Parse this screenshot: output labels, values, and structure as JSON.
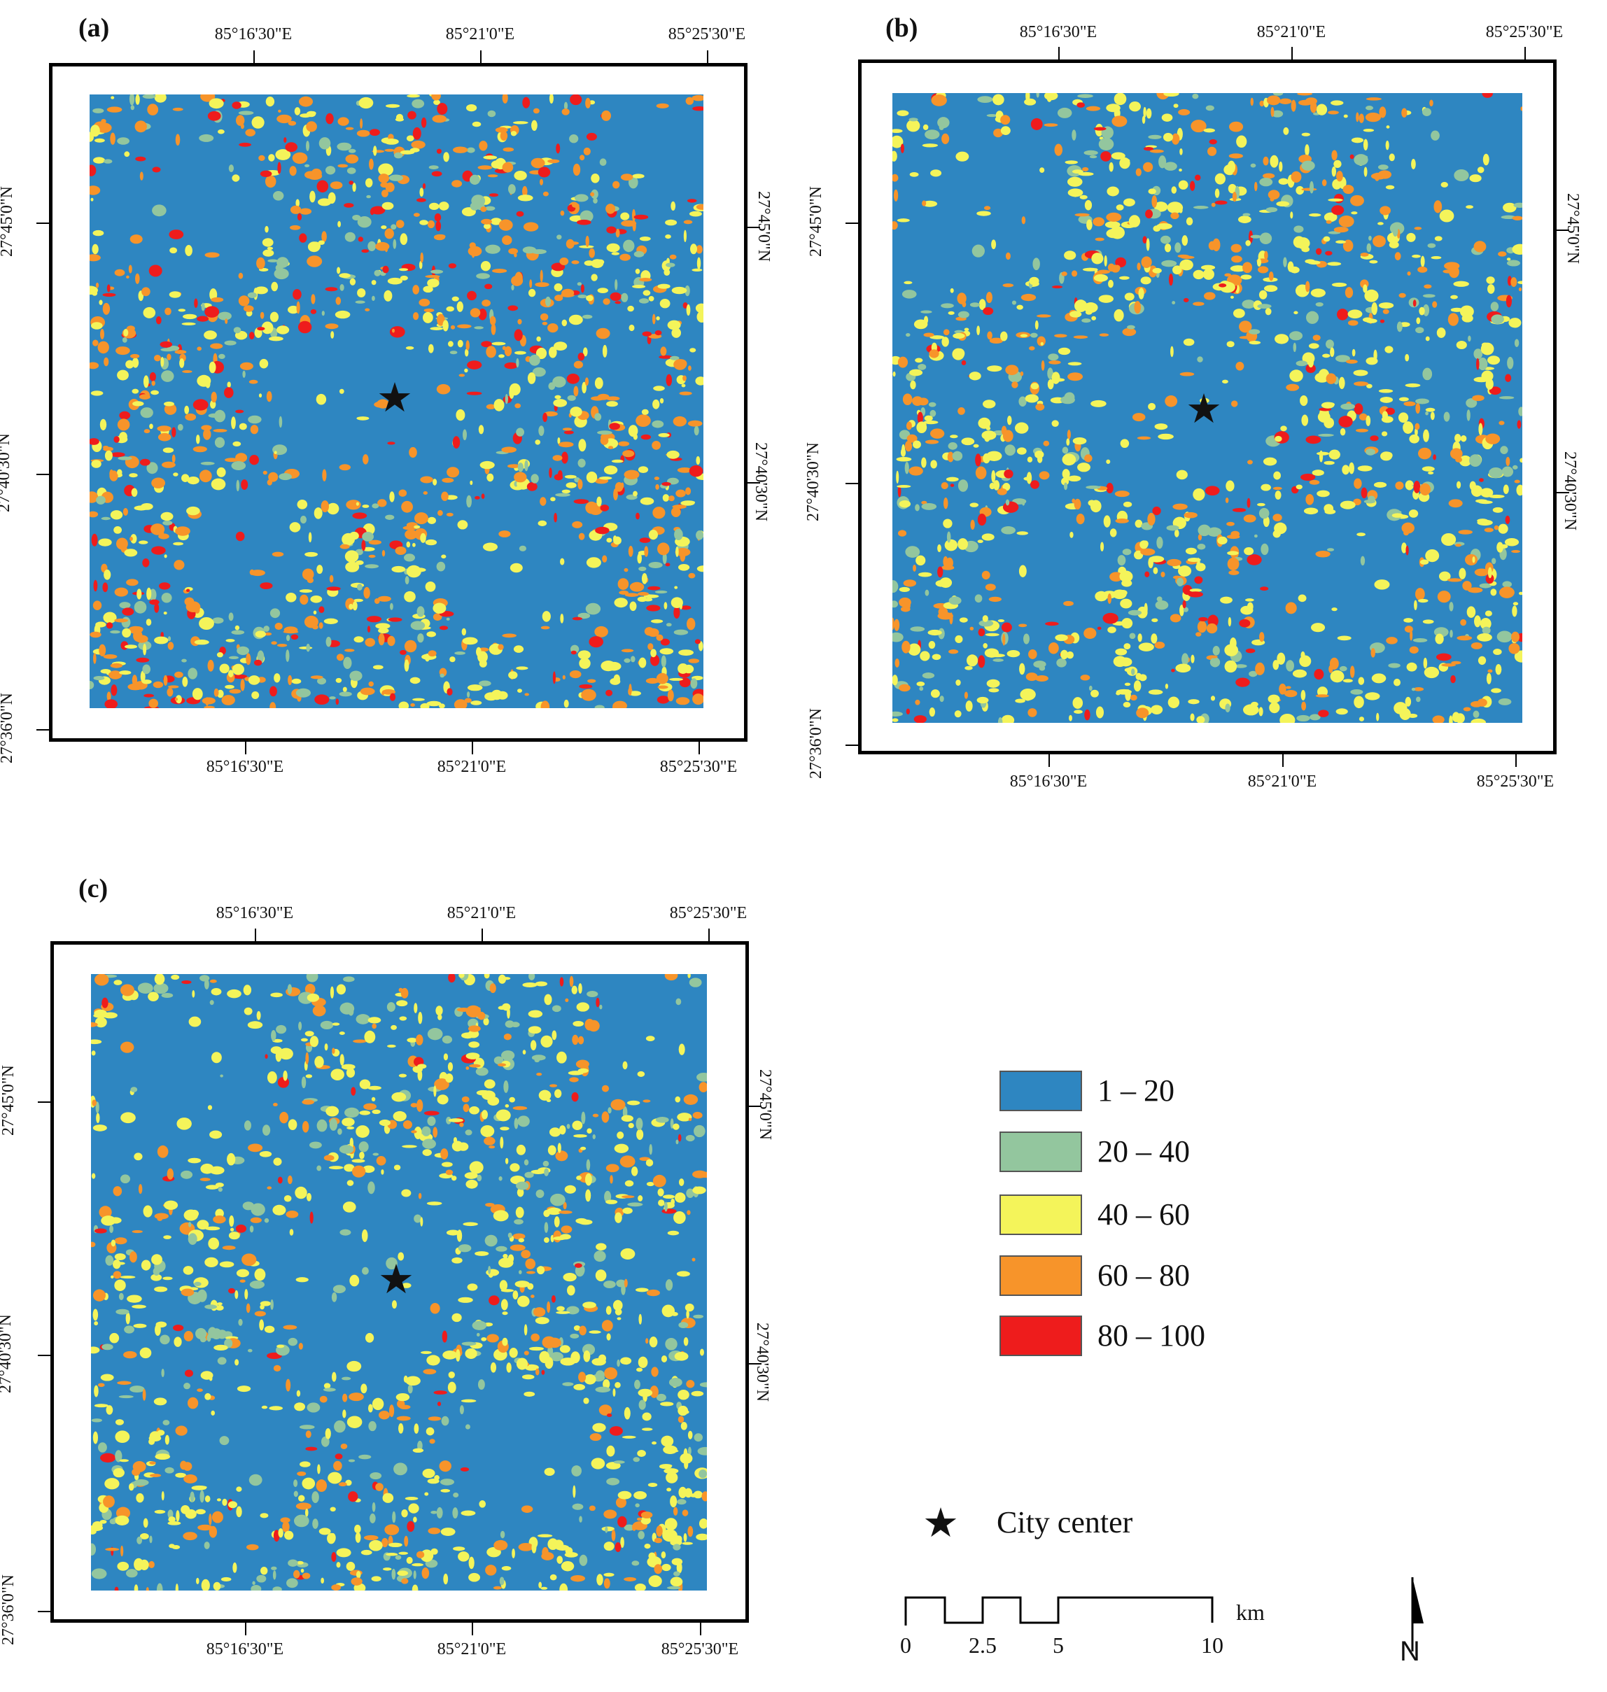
{
  "panels": [
    {
      "label": "(a)"
    },
    {
      "label": "(b)"
    },
    {
      "label": "(c)"
    }
  ],
  "lon_labels": [
    "85°16'30\"E",
    "85°21'0\"E",
    "85°25'30\"E"
  ],
  "lat_labels": [
    "27°45'0\"N",
    "27°40'30\"N",
    "27°36'0\"N"
  ],
  "legend": {
    "items": [
      {
        "range": "1 – 20",
        "color": "#2e86c1"
      },
      {
        "range": "20 – 40",
        "color": "#93c69e"
      },
      {
        "range": "40 – 60",
        "color": "#f4f45a"
      },
      {
        "range": "60 – 80",
        "color": "#f7942a"
      },
      {
        "range": "80 – 100",
        "color": "#ee1c1c"
      }
    ],
    "city_center": "City center"
  },
  "scale_bar": {
    "labels": [
      "0",
      "2.5",
      "5",
      "10"
    ],
    "unit": "km"
  },
  "north_arrow": {
    "label": "N"
  }
}
